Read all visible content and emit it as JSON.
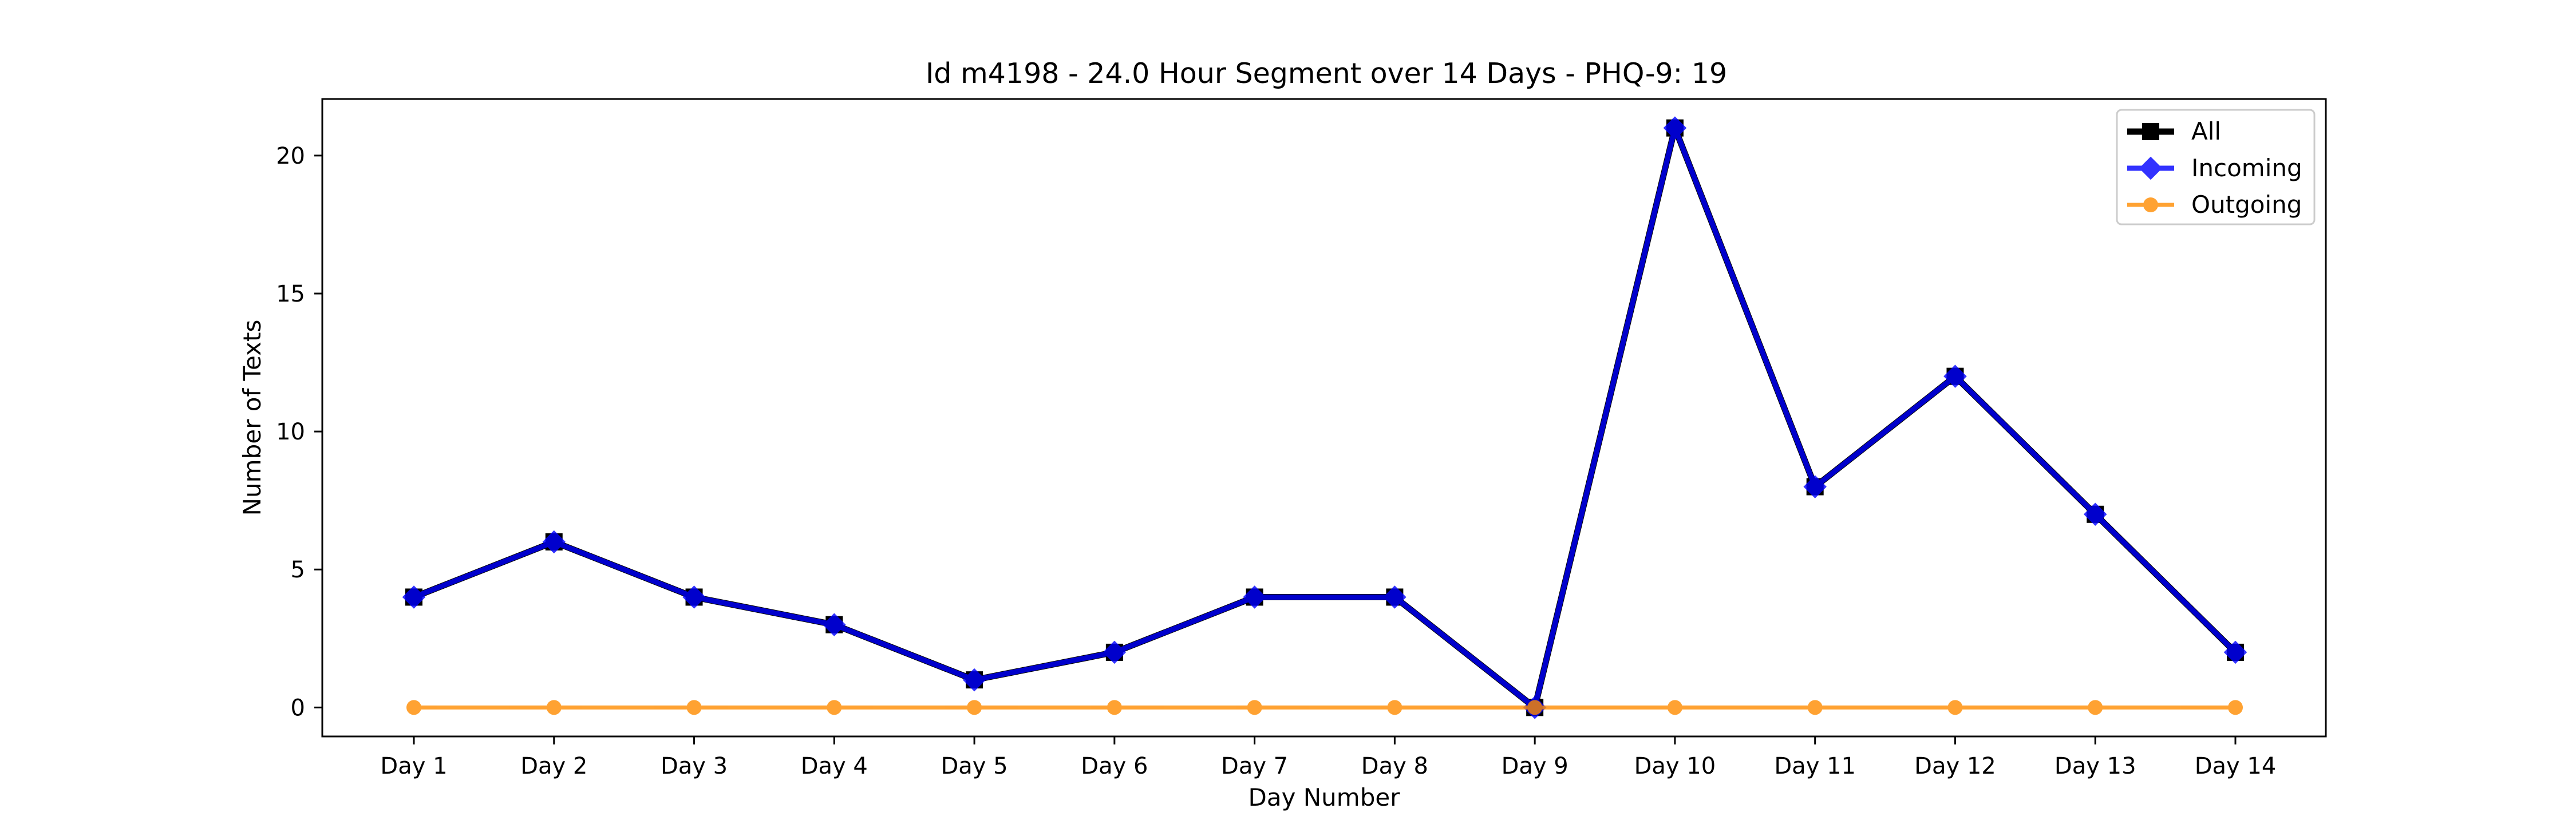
{
  "chart_data": {
    "type": "line",
    "title": "Id m4198 - 24.0 Hour Segment over 14 Days - PHQ-9: 19",
    "xlabel": "Day Number",
    "ylabel": "Number of Texts",
    "categories": [
      "Day 1",
      "Day 2",
      "Day 3",
      "Day 4",
      "Day 5",
      "Day 6",
      "Day 7",
      "Day 8",
      "Day 9",
      "Day 10",
      "Day 11",
      "Day 12",
      "Day 13",
      "Day 14"
    ],
    "ylim": [
      -1.05,
      22.05
    ],
    "yticks": [
      0,
      5,
      10,
      15,
      20
    ],
    "grid": false,
    "legend_position": "top-right",
    "series": [
      {
        "name": "All",
        "color": "#000000",
        "marker": "square",
        "values": [
          4,
          6,
          4,
          3,
          1,
          2,
          4,
          4,
          0,
          21,
          8,
          12,
          7,
          2
        ]
      },
      {
        "name": "Incoming",
        "color": "#0000ff",
        "marker": "diamond",
        "values": [
          4,
          6,
          4,
          3,
          1,
          2,
          4,
          4,
          0,
          21,
          8,
          12,
          7,
          2
        ]
      },
      {
        "name": "Outgoing",
        "color": "#ff8c00",
        "marker": "circle",
        "values": [
          0,
          0,
          0,
          0,
          0,
          0,
          0,
          0,
          0,
          0,
          0,
          0,
          0,
          0
        ]
      }
    ]
  }
}
